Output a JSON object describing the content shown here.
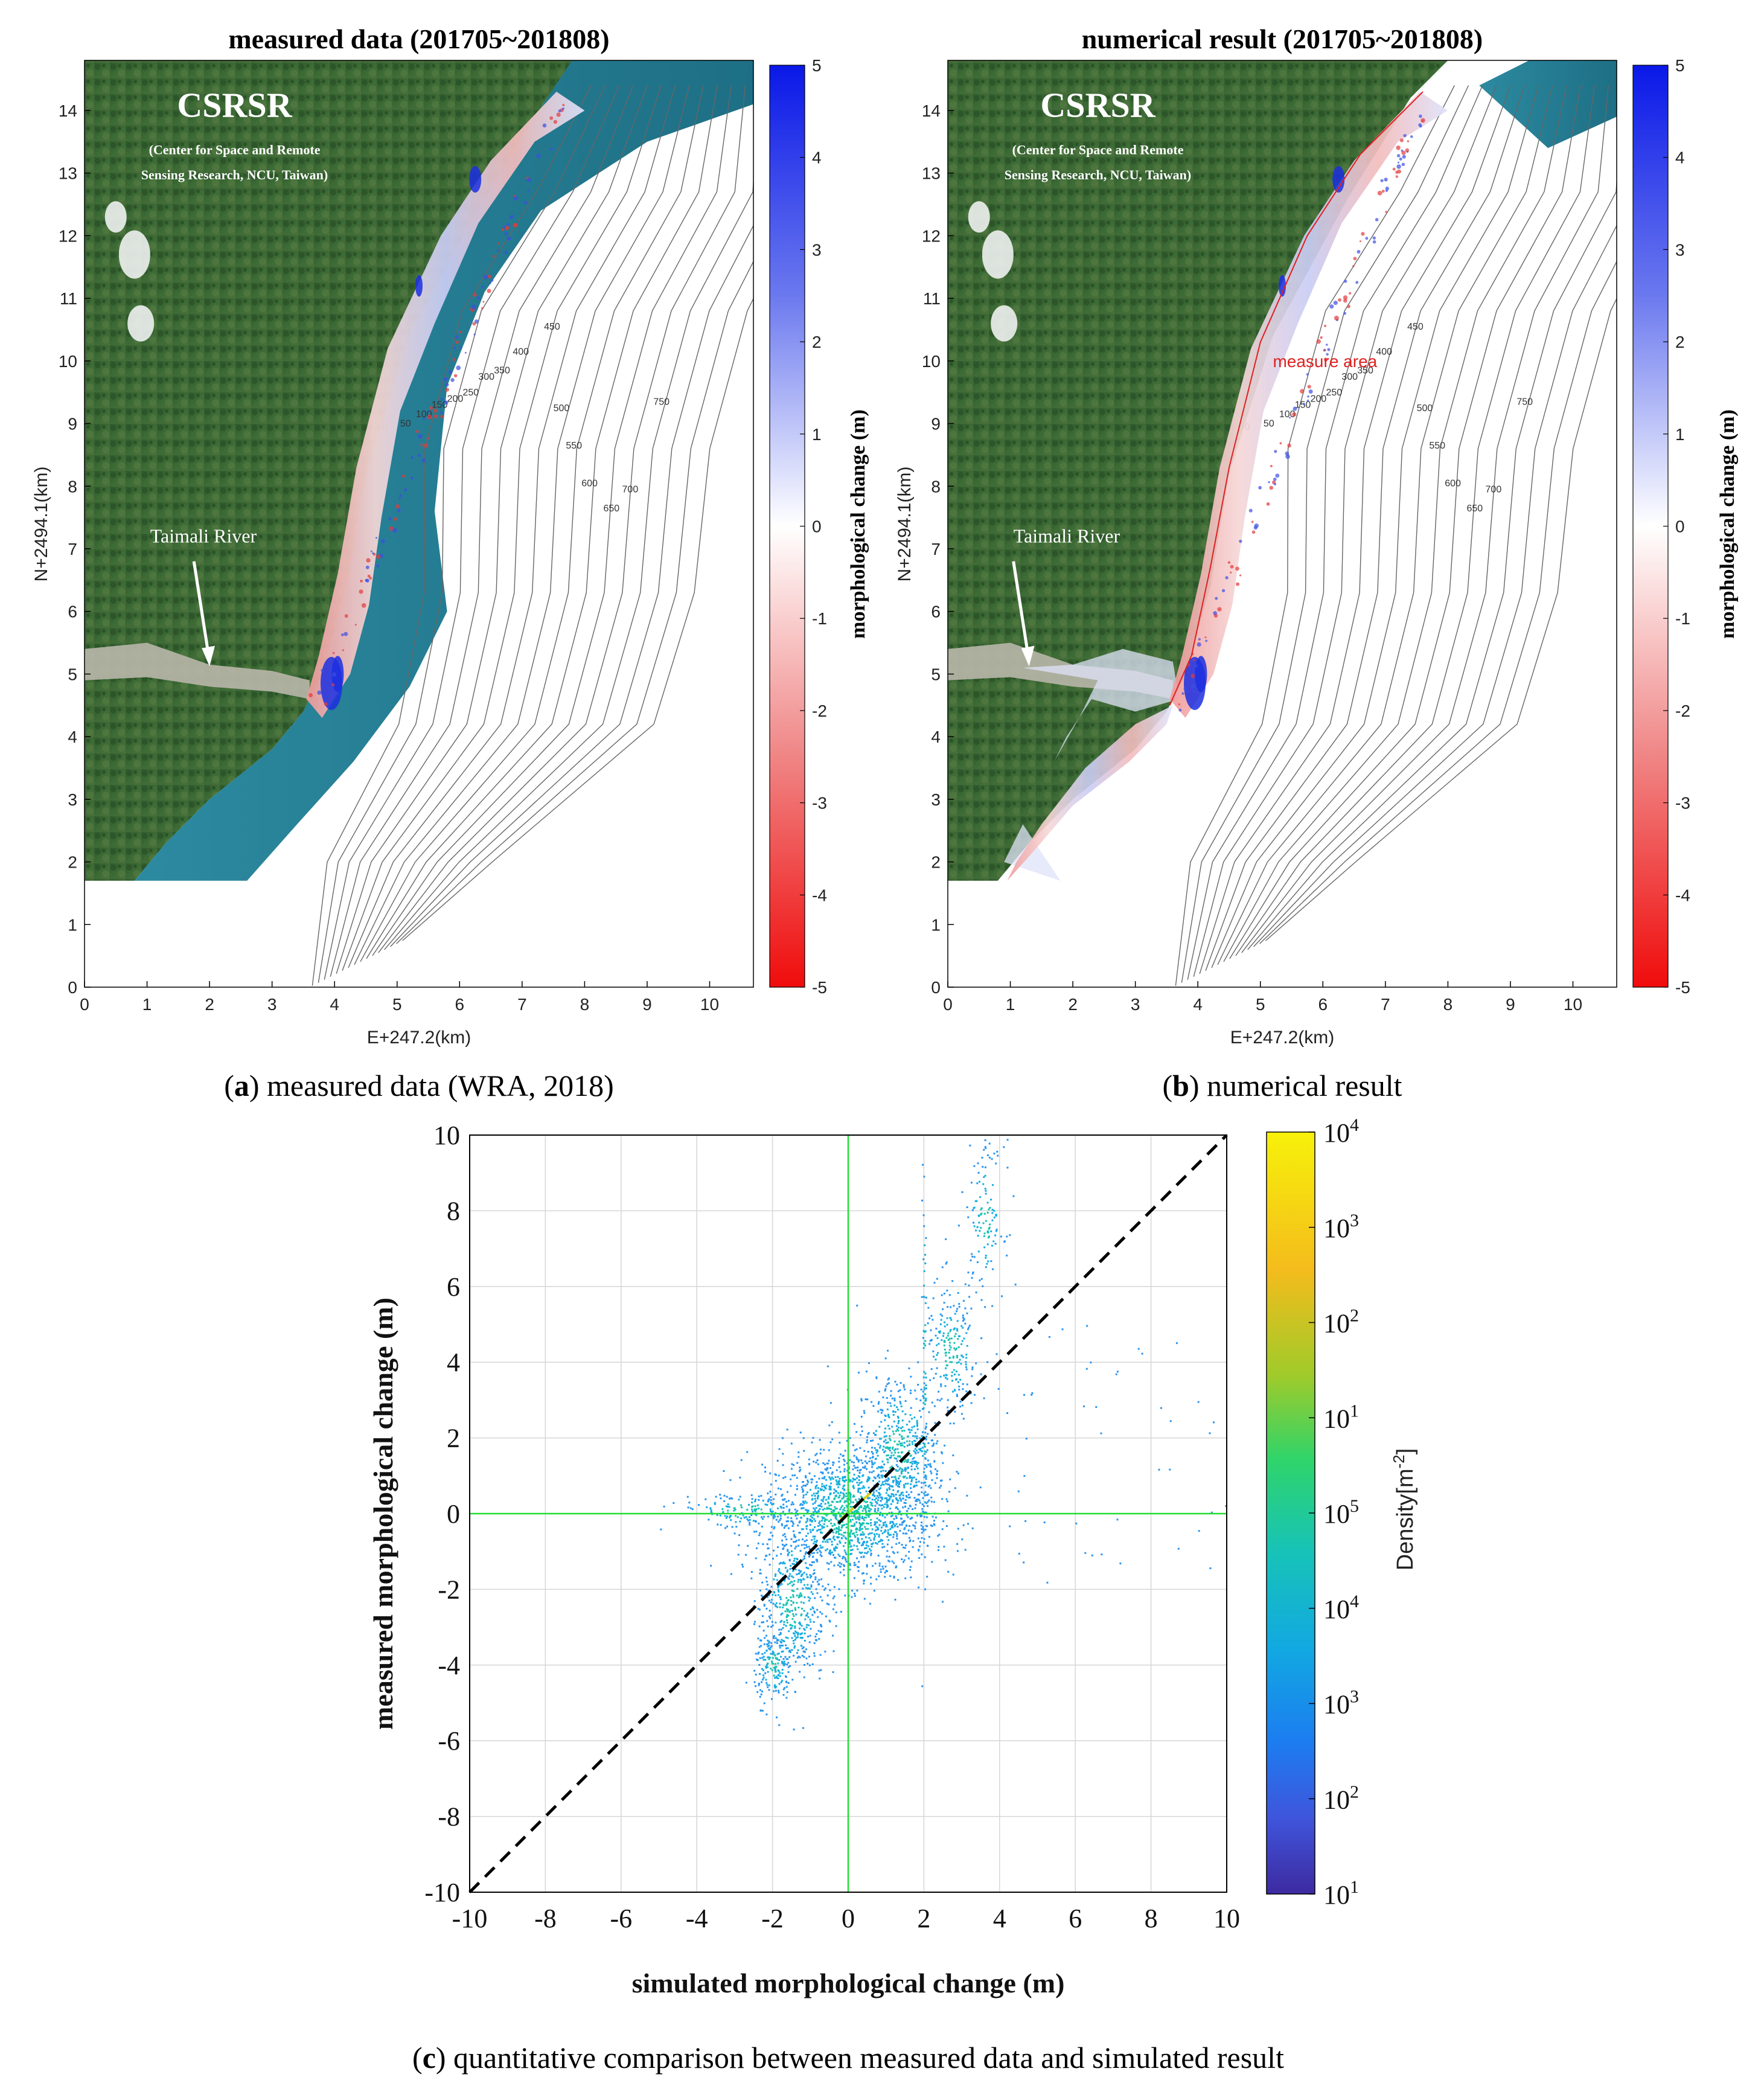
{
  "chart_data": [
    {
      "panel": "a",
      "type": "heatmap",
      "title": "measured data (201705~201808)",
      "xlabel": "E+247.2(km)",
      "ylabel": "N+2494.1(km)",
      "xlim": [
        0,
        10.7
      ],
      "ylim": [
        0,
        14.8
      ],
      "x_ticks": [
        0,
        1,
        2,
        3,
        4,
        5,
        6,
        7,
        8,
        9,
        10
      ],
      "y_ticks": [
        0,
        1,
        2,
        3,
        4,
        5,
        6,
        7,
        8,
        9,
        10,
        11,
        12,
        13,
        14
      ],
      "colorbar": {
        "label": "morphological change (m)",
        "range": [
          -5,
          5
        ],
        "ticks": [
          5,
          4,
          3,
          2,
          1,
          0,
          -1,
          -2,
          -3,
          -4,
          -5
        ]
      },
      "contour_labels": [
        "0",
        "50",
        "100",
        "150",
        "200",
        "250",
        "300",
        "350",
        "400",
        "450",
        "500",
        "550",
        "600",
        "650",
        "700",
        "750"
      ],
      "logo_title": "CSRSR",
      "logo_sub1": "(Center for Space and Remote",
      "logo_sub2": "Sensing Research, NCU, Taiwan)",
      "river_label": "Taimali River",
      "caption_letter": "a",
      "caption_text": ") measured data (WRA, 2018)"
    },
    {
      "panel": "b",
      "type": "heatmap",
      "title": "numerical result (201705~201808)",
      "xlabel": "E+247.2(km)",
      "ylabel": "N+2494.1(km)",
      "xlim": [
        0,
        10.7
      ],
      "ylim": [
        0,
        14.8
      ],
      "x_ticks": [
        0,
        1,
        2,
        3,
        4,
        5,
        6,
        7,
        8,
        9,
        10
      ],
      "y_ticks": [
        0,
        1,
        2,
        3,
        4,
        5,
        6,
        7,
        8,
        9,
        10,
        11,
        12,
        13,
        14
      ],
      "colorbar": {
        "label": "morphological change (m)",
        "range": [
          -5,
          5
        ],
        "ticks": [
          5,
          4,
          3,
          2,
          1,
          0,
          -1,
          -2,
          -3,
          -4,
          -5
        ]
      },
      "area_label": "measure area",
      "logo_title": "CSRSR",
      "logo_sub1": "(Center for Space and Remote",
      "logo_sub2": "Sensing Research, NCU, Taiwan)",
      "river_label": "Taimali River",
      "caption_letter": "b",
      "caption_text": ") numerical result"
    },
    {
      "panel": "c",
      "type": "scatter",
      "xlabel": "simulated morphological change (m)",
      "ylabel": "measured morphological change (m)",
      "xlim": [
        -10,
        10
      ],
      "ylim": [
        -10,
        10
      ],
      "x_ticks": [
        -10,
        -8,
        -6,
        -4,
        -2,
        0,
        2,
        4,
        6,
        8,
        10
      ],
      "y_ticks": [
        10,
        8,
        6,
        4,
        2,
        0,
        -2,
        -4,
        -6,
        -8,
        -10
      ],
      "reference_line": {
        "from": [
          -10,
          -10
        ],
        "to": [
          10,
          10
        ],
        "style": "dashed"
      },
      "zero_lines": true,
      "colorbar": {
        "label": "Density[m",
        "label_exp": "-2",
        "label_end": "]",
        "scale": "log",
        "ticks": [
          {
            "base": "10",
            "exp": "4"
          },
          {
            "base": "10",
            "exp": "3"
          },
          {
            "base": "10",
            "exp": "2"
          },
          {
            "base": "10",
            "exp": "1"
          },
          {
            "base": "10",
            "exp": "5"
          },
          {
            "base": "10",
            "exp": "4"
          },
          {
            "base": "10",
            "exp": "3"
          },
          {
            "base": "10",
            "exp": "2"
          },
          {
            "base": "10",
            "exp": "1"
          }
        ]
      },
      "clusters": [
        {
          "cx": 0.0,
          "cy": 0.0,
          "sx": 1.1,
          "sy": 0.9,
          "n": 1400
        },
        {
          "cx": 1.3,
          "cy": 1.6,
          "sx": 0.55,
          "sy": 1.1,
          "n": 500
        },
        {
          "cx": -1.5,
          "cy": -2.3,
          "sx": 0.45,
          "sy": 1.1,
          "n": 450
        },
        {
          "cx": -2.0,
          "cy": -4.0,
          "sx": 0.25,
          "sy": 0.5,
          "n": 160
        },
        {
          "cx": 2.7,
          "cy": 4.3,
          "sx": 0.35,
          "sy": 0.9,
          "n": 200
        },
        {
          "cx": 3.6,
          "cy": 7.8,
          "sx": 0.25,
          "sy": 1.0,
          "n": 130
        },
        {
          "cx": -2.8,
          "cy": 0.1,
          "sx": 0.9,
          "sy": 0.25,
          "n": 140
        },
        {
          "cx": 2.0,
          "cy": 3.5,
          "sx": 0.03,
          "sy": 3.0,
          "n": 80
        }
      ],
      "caption_letter": "c",
      "caption_text": ") quantitative comparison between measured data and simulated result"
    }
  ]
}
